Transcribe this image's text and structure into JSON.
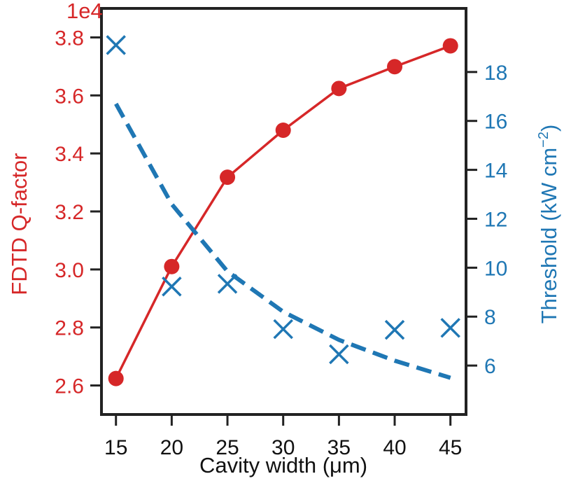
{
  "chart_data": {
    "type": "line",
    "xlabel": "Cavity width (μm)",
    "ylabel_left": "FDTD Q-factor",
    "ylabel_right": "Threshold  (kW cm",
    "ylabel_right_sup": "−2",
    "ylabel_right_close": ")",
    "left_offset_label": "1e4",
    "x": [
      15,
      20,
      25,
      30,
      35,
      40,
      45
    ],
    "x_ticks": [
      "15",
      "20",
      "25",
      "30",
      "35",
      "40",
      "45"
    ],
    "xlim": [
      13.7,
      46.4
    ],
    "ylim_left": [
      2.5,
      3.9
    ],
    "ylim_right": [
      4.0,
      20.6
    ],
    "y_ticks_left": [
      "2.6",
      "2.8",
      "3.0",
      "3.2",
      "3.4",
      "3.6",
      "3.8"
    ],
    "y_ticks_right": [
      "6",
      "8",
      "10",
      "12",
      "14",
      "16",
      "18"
    ],
    "grid": false,
    "series": [
      {
        "axis": "left",
        "style": "line-with-circles",
        "color": "#d62728",
        "values": [
          2.624,
          3.01,
          3.318,
          3.48,
          3.624,
          3.699,
          3.771
        ]
      },
      {
        "axis": "right",
        "style": "x-markers",
        "color": "#1f77b4",
        "values": [
          19.1,
          9.23,
          9.34,
          7.49,
          6.46,
          7.46,
          7.54
        ]
      },
      {
        "axis": "right",
        "style": "dashed-line",
        "color": "#1f77b4",
        "values": [
          16.7,
          12.6,
          9.85,
          8.2,
          7.05,
          6.2,
          5.5
        ]
      }
    ],
    "colors": {
      "left_axis": "#d62728",
      "right_axis": "#1f77b4",
      "frame": "#222222"
    }
  }
}
